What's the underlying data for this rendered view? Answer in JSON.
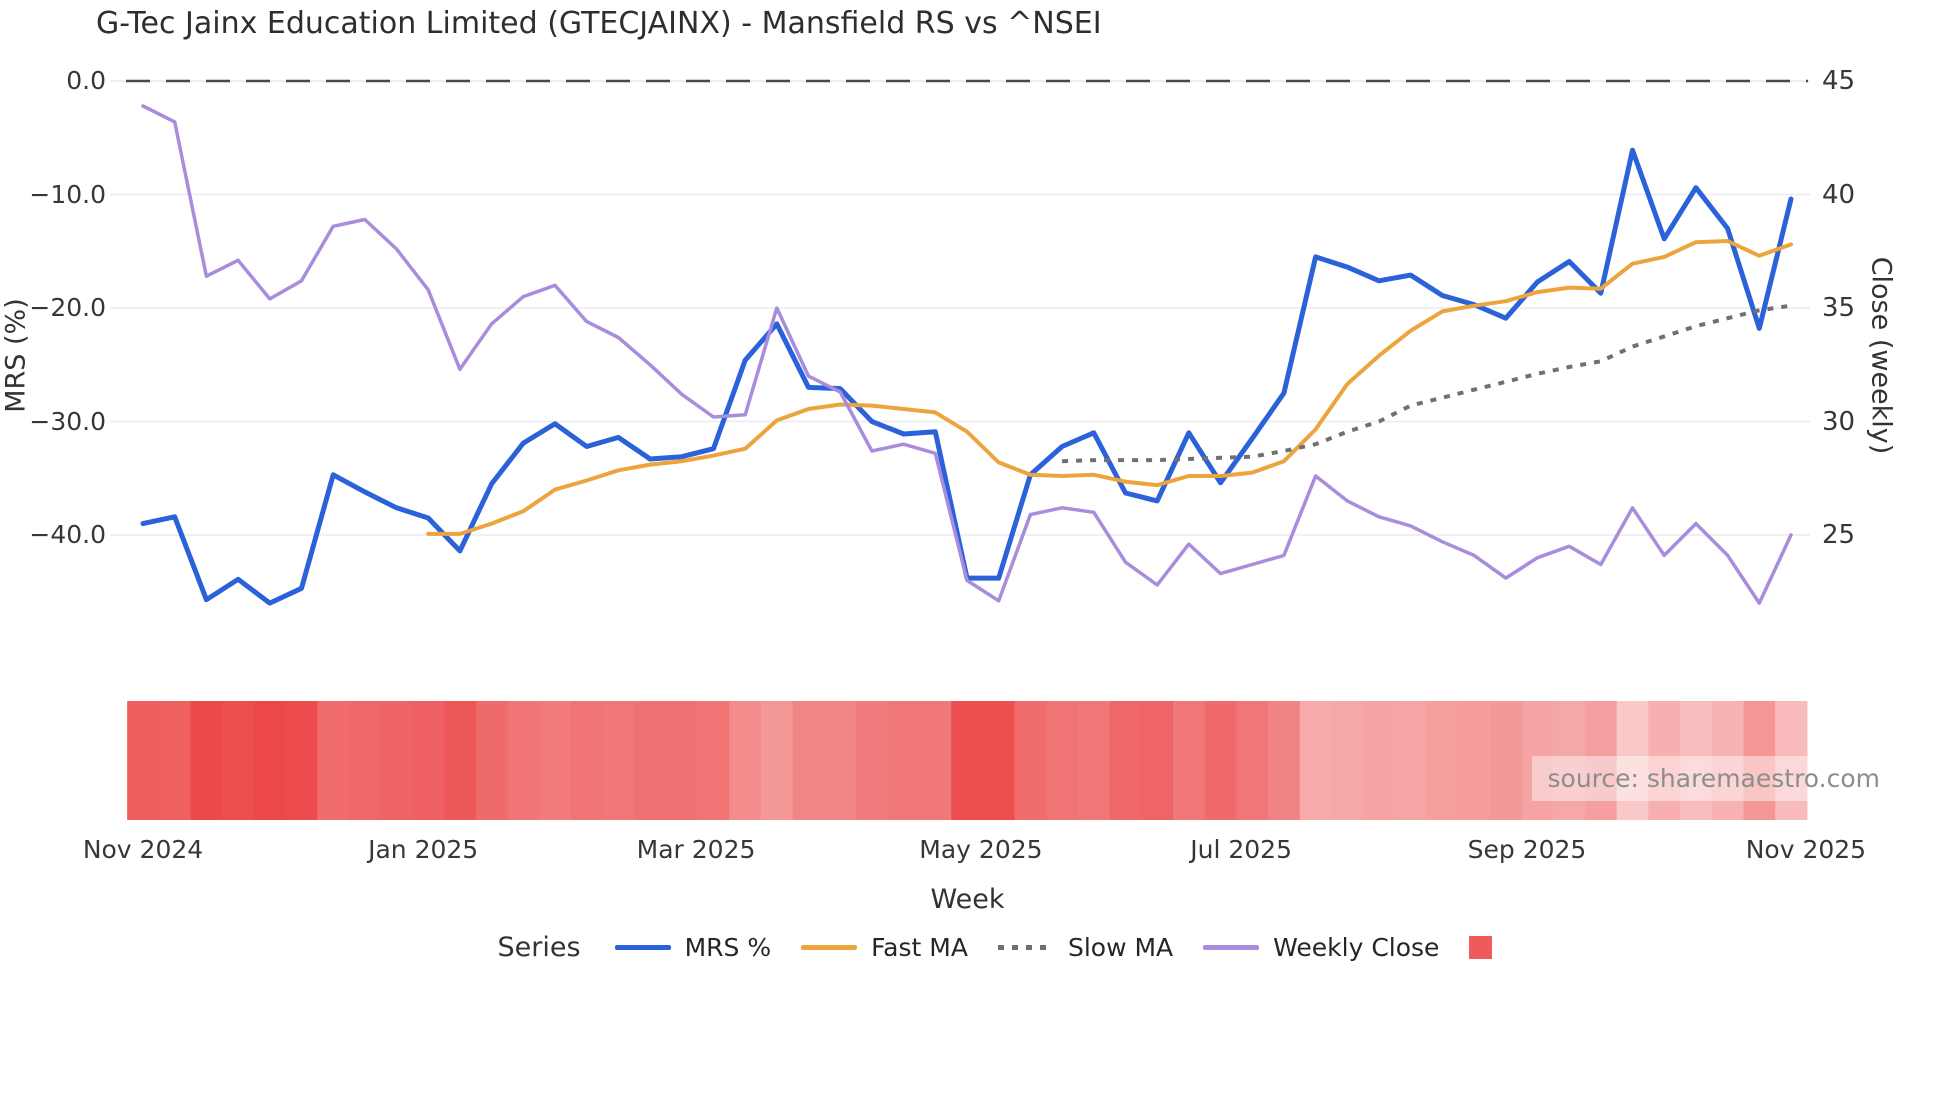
{
  "title": "G-Tec Jainx Education Limited (GTECJAINX) - Mansfield RS vs ^NSEI",
  "source_note": "source: sharemaestro.com",
  "axes": {
    "x": {
      "label": "Week",
      "ticks": [
        {
          "label": "Nov 2024",
          "week": 0
        },
        {
          "label": "Jan 2025",
          "week": 8.84
        },
        {
          "label": "Mar 2025",
          "week": 17.45
        },
        {
          "label": "May 2025",
          "week": 26.44
        },
        {
          "label": "Jul 2025",
          "week": 34.65
        },
        {
          "label": "Sep 2025",
          "week": 43.67
        },
        {
          "label": "Nov 2025",
          "week": 52.47
        }
      ]
    },
    "left": {
      "label": "MRS (%)",
      "tick_labels": [
        "0.0",
        "−10.0",
        "−20.0",
        "−30.0",
        "−40.0"
      ],
      "tick_values": [
        0,
        -10,
        -20,
        -30,
        -40
      ]
    },
    "right": {
      "label": "Close (weekly)",
      "tick_labels": [
        "45",
        "40",
        "35",
        "30",
        "25"
      ],
      "tick_values": [
        45,
        40,
        35,
        30,
        25
      ]
    }
  },
  "legend": {
    "title": "Series",
    "items": [
      {
        "label": "MRS %",
        "swatch": "line",
        "color": "#2B62D9"
      },
      {
        "label": "Fast MA",
        "swatch": "line",
        "color": "#EBA53C"
      },
      {
        "label": "Slow MA",
        "swatch": "dotted",
        "color": "#707070"
      },
      {
        "label": "Weekly Close",
        "swatch": "line",
        "color": "#A98CDC"
      },
      {
        "label": "",
        "swatch": "square",
        "color": "#EF5B5B"
      }
    ]
  },
  "zero_line": {
    "value": 0,
    "style": "dashed",
    "color": "#4a4a4a"
  },
  "grid_color": "#ebebf0",
  "chart_data": {
    "type": "line",
    "title": "G-Tec Jainx Education Limited (GTECJAINX) - Mansfield RS vs ^NSEI",
    "xlabel": "Week",
    "ylabel_left": "MRS (%)",
    "ylabel_right": "Close (weekly)",
    "x_unit": "week-index",
    "n_points": 53,
    "x_tick_labels": [
      "Nov 2024",
      "Jan 2025",
      "Mar 2025",
      "May 2025",
      "Jul 2025",
      "Sep 2025",
      "Nov 2025"
    ],
    "ylim_left": [
      -47,
      0
    ],
    "ylim_right": [
      21.5,
      45
    ],
    "grid": "horizontal",
    "legend_position": "bottom",
    "series": [
      {
        "name": "MRS %",
        "axis": "left",
        "color": "#2B62D9",
        "style": "solid",
        "width": 5,
        "values": [
          -39.0,
          -38.4,
          -45.7,
          -43.9,
          -46.0,
          -44.7,
          -34.7,
          -36.2,
          -37.6,
          -38.5,
          -41.4,
          -35.5,
          -31.9,
          -30.2,
          -32.2,
          -31.4,
          -33.3,
          -33.1,
          -32.4,
          -24.6,
          -21.4,
          -27.0,
          -27.1,
          -30.0,
          -31.1,
          -30.9,
          -43.8,
          -43.8,
          -34.7,
          -32.2,
          -31.0,
          -36.3,
          -37.0,
          -31.0,
          -35.4,
          -31.5,
          -27.5,
          -15.5,
          -16.4,
          -17.6,
          -17.1,
          -18.9,
          -19.7,
          -20.9,
          -17.7,
          -15.9,
          -18.7,
          -6.1,
          -13.9,
          -9.4,
          -13.0,
          -21.8,
          -10.4
        ]
      },
      {
        "name": "Fast MA",
        "axis": "left",
        "color": "#EBA53C",
        "style": "solid",
        "width": 4,
        "values": [
          null,
          null,
          null,
          null,
          null,
          null,
          null,
          null,
          null,
          -39.9,
          -39.9,
          -39.0,
          -37.9,
          -36.0,
          -35.2,
          -34.3,
          -33.8,
          -33.5,
          -33.0,
          -32.4,
          -29.9,
          -28.9,
          -28.5,
          -28.6,
          -28.9,
          -29.2,
          -30.9,
          -33.6,
          -34.7,
          -34.8,
          -34.7,
          -35.3,
          -35.6,
          -34.8,
          -34.8,
          -34.5,
          -33.5,
          -30.7,
          -26.7,
          -24.2,
          -22.0,
          -20.3,
          -19.8,
          -19.4,
          -18.6,
          -18.2,
          -18.3,
          -16.1,
          -15.5,
          -14.2,
          -14.1,
          -15.4,
          -14.4
        ]
      },
      {
        "name": "Slow MA",
        "axis": "left",
        "color": "#707070",
        "style": "dotted",
        "width": 4,
        "values": [
          null,
          null,
          null,
          null,
          null,
          null,
          null,
          null,
          null,
          null,
          null,
          null,
          null,
          null,
          null,
          null,
          null,
          null,
          null,
          null,
          null,
          null,
          null,
          null,
          null,
          null,
          null,
          null,
          null,
          -33.5,
          -33.4,
          -33.4,
          -33.4,
          -33.3,
          -33.2,
          -33.1,
          -32.6,
          -32.0,
          -30.9,
          -30.0,
          -28.6,
          -27.9,
          -27.2,
          -26.5,
          -25.8,
          -25.2,
          -24.7,
          -23.4,
          -22.5,
          -21.6,
          -20.9,
          -20.2,
          -19.8
        ]
      },
      {
        "name": "Weekly Close",
        "axis": "right",
        "color": "#A98CDC",
        "style": "solid",
        "width": 3.5,
        "values": [
          43.9,
          43.2,
          36.4,
          37.1,
          35.4,
          36.2,
          38.6,
          38.9,
          37.6,
          35.8,
          32.3,
          34.3,
          35.5,
          36.0,
          34.4,
          33.7,
          32.5,
          31.2,
          30.2,
          30.3,
          35.0,
          32.0,
          31.3,
          28.7,
          29.0,
          28.6,
          23.0,
          22.1,
          25.9,
          26.2,
          26.0,
          23.8,
          22.8,
          24.6,
          23.3,
          23.7,
          24.1,
          27.6,
          26.5,
          25.8,
          25.4,
          24.7,
          24.1,
          23.1,
          24.0,
          24.5,
          23.7,
          26.2,
          24.1,
          25.5,
          24.1,
          22.0,
          25.0
        ]
      }
    ],
    "heatmap_strip": {
      "basis": "MRS %",
      "description": "one red cell per week; darker red = more negative MRS",
      "base_color_rgb": [
        236,
        72,
        73
      ],
      "alpha_min": 0.3,
      "alpha_max": 1.0,
      "mrs_range": [
        -6,
        -46
      ]
    }
  }
}
